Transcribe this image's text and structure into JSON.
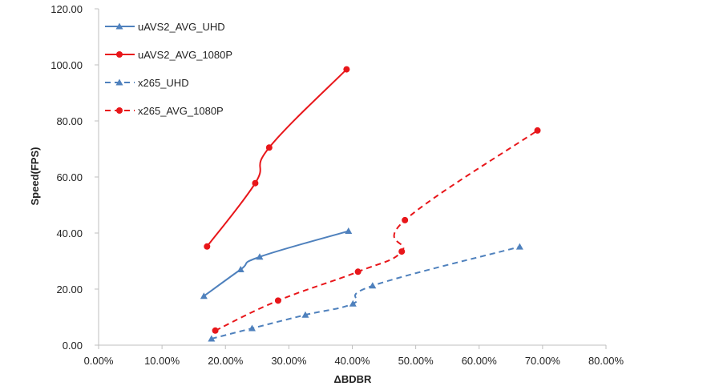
{
  "chart_data": {
    "type": "line",
    "xlabel": "ΔBDBR",
    "ylabel": "Speed(FPS)",
    "xlim": [
      0,
      0.8
    ],
    "ylim": [
      0,
      120
    ],
    "xticks": [
      "0.00%",
      "10.00%",
      "20.00%",
      "30.00%",
      "40.00%",
      "50.00%",
      "60.00%",
      "70.00%",
      "80.00%"
    ],
    "yticks": [
      "0.00",
      "20.00",
      "40.00",
      "60.00",
      "80.00",
      "100.00",
      "120.00"
    ],
    "grid": false,
    "legend_position": "top-left",
    "series": [
      {
        "name": "uAVS2_AVG_UHD",
        "color": "#4f81bd",
        "dashed": false,
        "marker": "triangle",
        "points": [
          [
            0.166,
            17.5
          ],
          [
            0.224,
            27.0
          ],
          [
            0.254,
            31.5
          ],
          [
            0.394,
            40.7
          ]
        ]
      },
      {
        "name": "uAVS2_AVG_1080P",
        "color": "#e8161a",
        "dashed": false,
        "marker": "circle",
        "points": [
          [
            0.171,
            35.2
          ],
          [
            0.247,
            57.8
          ],
          [
            0.269,
            70.5
          ],
          [
            0.391,
            98.4
          ]
        ]
      },
      {
        "name": "x265_UHD",
        "color": "#4f81bd",
        "dashed": true,
        "marker": "triangle",
        "points": [
          [
            0.178,
            2.3
          ],
          [
            0.242,
            6.0
          ],
          [
            0.326,
            10.8
          ],
          [
            0.401,
            14.8
          ],
          [
            0.432,
            21.2
          ],
          [
            0.664,
            35.1
          ]
        ]
      },
      {
        "name": "x265_AVG_1080P",
        "color": "#e8161a",
        "dashed": true,
        "marker": "circle",
        "points": [
          [
            0.184,
            5.2
          ],
          [
            0.283,
            15.9
          ],
          [
            0.409,
            26.2
          ],
          [
            0.478,
            33.4
          ],
          [
            0.483,
            44.6
          ],
          [
            0.692,
            76.6
          ]
        ]
      }
    ]
  }
}
